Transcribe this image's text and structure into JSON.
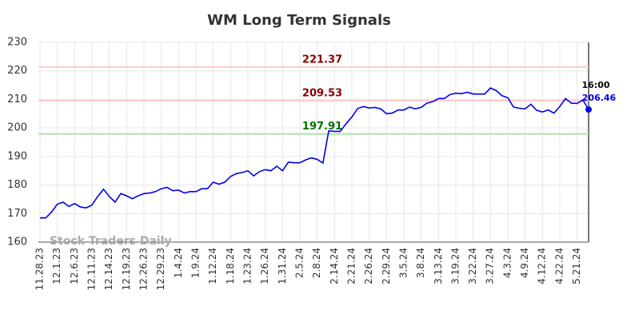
{
  "chart_data": {
    "type": "line",
    "title": "WM Long Term Signals",
    "watermark": "Stock Traders Daily",
    "categories": [
      "11.28.23",
      null,
      null,
      "12.1.23",
      null,
      null,
      "12.6.23",
      null,
      null,
      "12.11.23",
      null,
      null,
      "12.14.23",
      null,
      null,
      "12.19.23",
      null,
      null,
      "12.26.23",
      null,
      null,
      "12.29.23",
      null,
      null,
      "1.4.24",
      null,
      null,
      "1.9.24",
      null,
      null,
      "1.12.24",
      null,
      null,
      "1.18.24",
      null,
      null,
      "1.23.24",
      null,
      null,
      "1.26.24",
      null,
      null,
      "1.31.24",
      null,
      null,
      "2.5.24",
      null,
      null,
      "2.8.24",
      null,
      null,
      "2.14.24",
      null,
      null,
      "2.21.24",
      null,
      null,
      "2.26.24",
      null,
      null,
      "2.29.24",
      null,
      null,
      "3.5.24",
      null,
      null,
      "3.8.24",
      null,
      null,
      "3.13.24",
      null,
      null,
      "3.19.24",
      null,
      null,
      "3.22.24",
      null,
      null,
      "3.27.24",
      null,
      null,
      "4.3.24",
      null,
      null,
      "4.9.24",
      null,
      null,
      "4.12.24",
      null,
      null,
      "4.22.24",
      null,
      null,
      "5.21.24",
      null,
      null
    ],
    "series": [
      {
        "name": "WM",
        "color": "#0000ee",
        "values": [
          168.5,
          168.5,
          170.5,
          173.3,
          174,
          172.5,
          173.5,
          172.3,
          172,
          173,
          176,
          178.5,
          176,
          174,
          177,
          176.2,
          175.2,
          176.2,
          177,
          177.2,
          177.7,
          178.7,
          179.2,
          178,
          178.2,
          177.2,
          177.7,
          177.7,
          178.7,
          178.7,
          181,
          180.3,
          181,
          183,
          184,
          184.4,
          185,
          183.2,
          184.7,
          185.4,
          185,
          186.6,
          185,
          188,
          187.8,
          187.8,
          188.8,
          189.5,
          189,
          187.7,
          199,
          198.8,
          198.8,
          201.5,
          203.8,
          206.8,
          207.5,
          207,
          207.2,
          206.7,
          205,
          205.2,
          206.3,
          206.3,
          207.3,
          206.7,
          207.2,
          208.7,
          209.2,
          210.3,
          210.3,
          211.7,
          212.2,
          212,
          212.5,
          211.9,
          211.9,
          211.9,
          214,
          213.1,
          211.3,
          210.6,
          207.3,
          206.9,
          206.7,
          208.3,
          206.2,
          205.6,
          206.3,
          205.2,
          207.5,
          210.3,
          208.7,
          208.6,
          209.8,
          206.46
        ]
      }
    ],
    "last_time": "16:00",
    "hlines": [
      {
        "value": 221.37,
        "color": "#ffcccc",
        "label_color": "#8b0000"
      },
      {
        "value": 209.53,
        "color": "#ffcccc",
        "label_color": "#8b0000"
      },
      {
        "value": 197.91,
        "color": "#a6e6a6",
        "label_color": "#007000"
      }
    ],
    "ylim": [
      160,
      230
    ],
    "yticks": [
      160,
      170,
      180,
      190,
      200,
      210,
      220,
      230
    ],
    "grid": true
  }
}
